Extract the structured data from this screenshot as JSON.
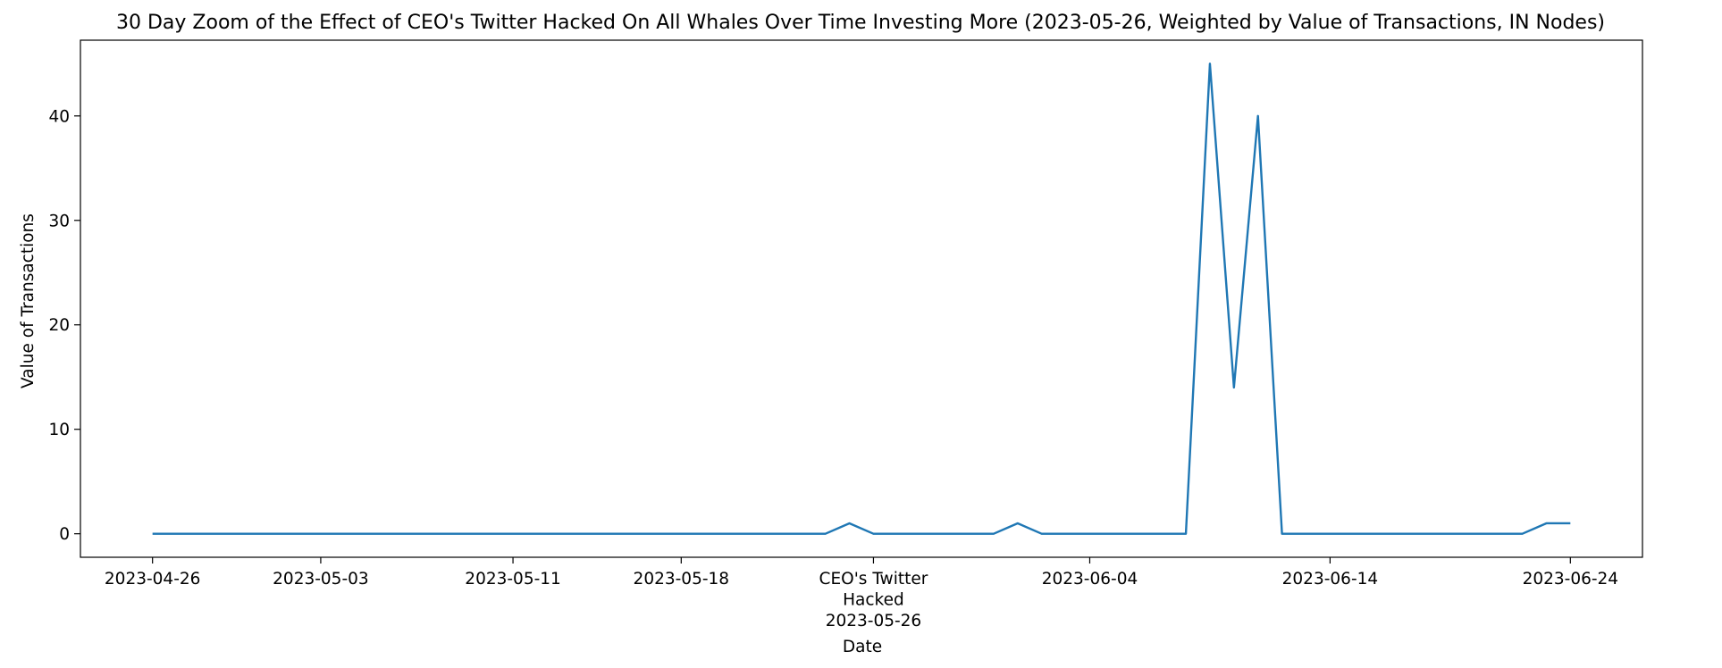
{
  "chart_data": {
    "type": "line",
    "title": "30 Day Zoom of the Effect of CEO's Twitter Hacked On All Whales Over Time Investing More (2023-05-26, Weighted by Value of Transactions, IN Nodes)",
    "xlabel": "Date",
    "ylabel": "Value of Transactions",
    "ylim": [
      -2.25,
      47.25
    ],
    "xlim": [
      "2023-04-23",
      "2023-06-27"
    ],
    "grid": false,
    "legend": "none",
    "color": "#1f77b4",
    "x_ticks": [
      {
        "date": "2023-04-26",
        "lines": [
          "2023-04-26"
        ]
      },
      {
        "date": "2023-05-03",
        "lines": [
          "2023-05-03"
        ]
      },
      {
        "date": "2023-05-11",
        "lines": [
          "2023-05-11"
        ]
      },
      {
        "date": "2023-05-18",
        "lines": [
          "2023-05-18"
        ]
      },
      {
        "date": "2023-05-26",
        "lines": [
          "CEO's Twitter",
          "Hacked",
          "2023-05-26"
        ]
      },
      {
        "date": "2023-06-04",
        "lines": [
          "2023-06-04"
        ]
      },
      {
        "date": "2023-06-14",
        "lines": [
          "2023-06-14"
        ]
      },
      {
        "date": "2023-06-24",
        "lines": [
          "2023-06-24"
        ]
      }
    ],
    "y_ticks": [
      0,
      10,
      20,
      30,
      40
    ],
    "series": [
      {
        "x": [
          "2023-04-26",
          "2023-05-24",
          "2023-05-25",
          "2023-05-26",
          "2023-05-31",
          "2023-06-01",
          "2023-06-02",
          "2023-06-08",
          "2023-06-09",
          "2023-06-10",
          "2023-06-11",
          "2023-06-12",
          "2023-06-22",
          "2023-06-23",
          "2023-06-24"
        ],
        "y": [
          0,
          0,
          1,
          0,
          0,
          1,
          0,
          0,
          45,
          14,
          40,
          0,
          0,
          1,
          1
        ]
      }
    ]
  }
}
